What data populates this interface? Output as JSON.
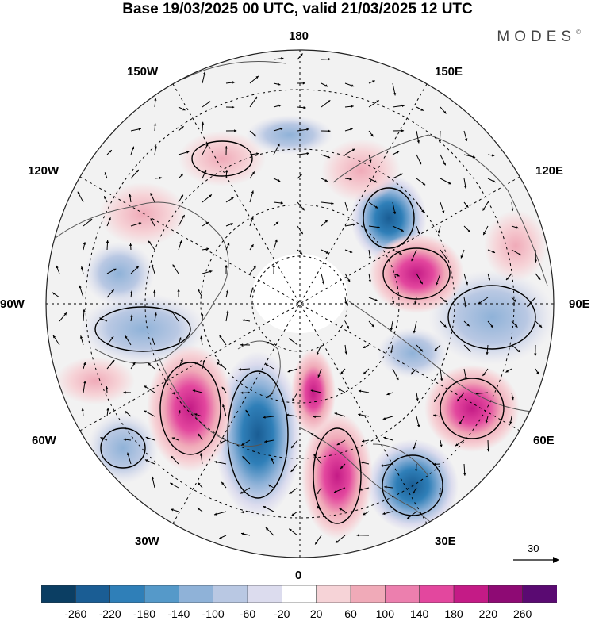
{
  "title": "Base 19/03/2025 00 UTC, valid 21/03/2025 12 UTC",
  "brand": "MODES",
  "brand_mark": "©",
  "longitude_labels": {
    "n180": "180",
    "w150": "150W",
    "e150": "150E",
    "w120": "120W",
    "e120": "120E",
    "w90": "90W",
    "e90": "90E",
    "w60": "60W",
    "e60": "60E",
    "w30": "30W",
    "e30": "30E",
    "s0": "0"
  },
  "reference_vector": {
    "label": "30"
  },
  "colorbar": {
    "ticks": [
      "-260",
      "-220",
      "-180",
      "-140",
      "-100",
      "-60",
      "-20",
      "20",
      "60",
      "100",
      "140",
      "180",
      "220",
      "260"
    ],
    "colors": [
      "#0b3e63",
      "#1a5d94",
      "#2f7fb8",
      "#5599c9",
      "#8fb2d8",
      "#b9c8e3",
      "#dcdcee",
      "#ffffff",
      "#f6d3d7",
      "#f0aab8",
      "#ec7fae",
      "#e3479e",
      "#c41b86",
      "#8e0a74",
      "#5a0a72"
    ]
  },
  "map_colors": {
    "ocean": "#f2f2f2",
    "land_outline": "#555555",
    "graticule": "#000000"
  }
}
